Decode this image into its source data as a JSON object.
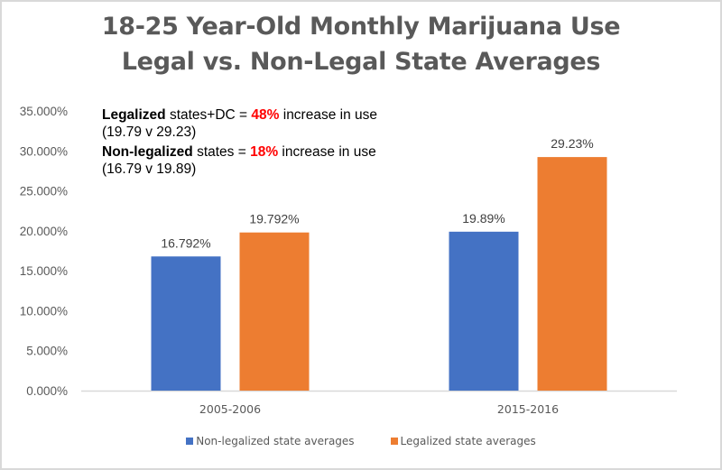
{
  "chart_data": {
    "type": "bar",
    "title": "18-25 Year-Old Monthly Marijuana Use",
    "subtitle": "Legal vs. Non-Legal State Averages",
    "categories": [
      "2005-2006",
      "2015-2016"
    ],
    "series": [
      {
        "name": "Non-legalized state averages",
        "color": "#4472c4",
        "values": [
          16.792,
          19.89
        ],
        "labels": [
          "16.792%",
          "19.89%"
        ]
      },
      {
        "name": "Legalized state averages",
        "color": "#ed7d31",
        "values": [
          19.792,
          29.23
        ],
        "labels": [
          "19.792%",
          "29.23%"
        ]
      }
    ],
    "xlabel": "",
    "ylabel": "",
    "ylim": [
      0,
      35
    ],
    "yticks": [
      0,
      5,
      10,
      15,
      20,
      25,
      30,
      35
    ],
    "ytick_labels": [
      "0.000%",
      "5.000%",
      "10.000%",
      "15.000%",
      "20.000%",
      "25.000%",
      "30.000%",
      "35.000%"
    ],
    "grid": false,
    "legend_position": "bottom",
    "annotations": [
      {
        "bold": "Legalized",
        "text1": " states+DC = ",
        "highlight": "48%",
        "text2": " increase in use (19.79 v 29.23)"
      },
      {
        "bold": "Non-legalized",
        "text1": " states = ",
        "highlight": "18%",
        "text2": " increase in use (16.79 v 19.89)"
      }
    ]
  }
}
